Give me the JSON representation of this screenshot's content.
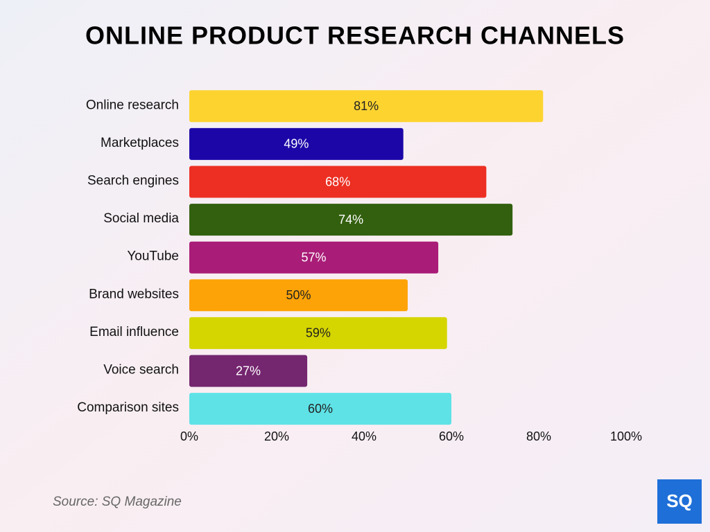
{
  "chart_data": {
    "type": "bar",
    "orientation": "horizontal",
    "title": "ONLINE PRODUCT RESEARCH CHANNELS",
    "categories": [
      "Online research",
      "Marketplaces",
      "Search engines",
      "Social media",
      "YouTube",
      "Brand websites",
      "Email influence",
      "Voice search",
      "Comparison sites"
    ],
    "values": [
      81,
      49,
      68,
      74,
      57,
      50,
      59,
      27,
      60
    ],
    "value_labels": [
      "81%",
      "49%",
      "68%",
      "74%",
      "57%",
      "50%",
      "59%",
      "27%",
      "60%"
    ],
    "colors": [
      "#fdd330",
      "#1c06a8",
      "#ec2f22",
      "#33600f",
      "#a91c77",
      "#fda307",
      "#d5d500",
      "#74266f",
      "#5ee2e6"
    ],
    "xlim": [
      0,
      100
    ],
    "xticks": [
      {
        "value": 0,
        "label": "0%"
      },
      {
        "value": 20,
        "label": "20%"
      },
      {
        "value": 40,
        "label": "40%"
      },
      {
        "value": 60,
        "label": "60%"
      },
      {
        "value": 80,
        "label": "80%"
      },
      {
        "value": 100,
        "label": "100%"
      }
    ],
    "grid": false,
    "source": "Source: SQ Magazine"
  },
  "logo": "SQ"
}
